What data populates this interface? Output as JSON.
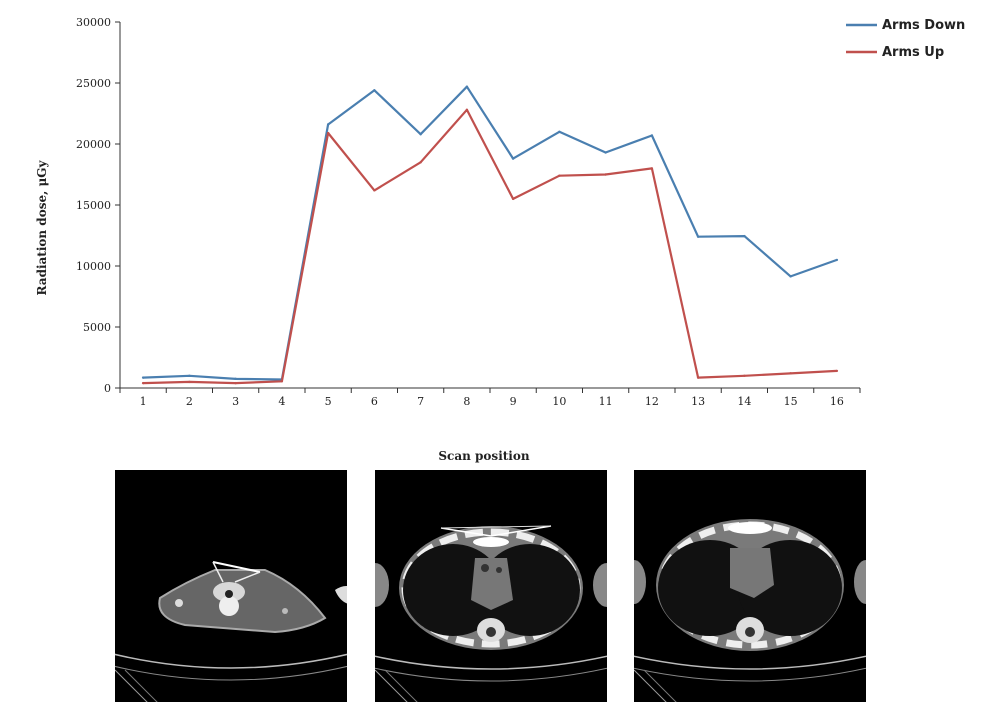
{
  "colors": {
    "arms_down": "#4a7fb0",
    "arms_up": "#c0504d"
  },
  "chart_data": {
    "type": "line",
    "x": [
      1,
      2,
      3,
      4,
      5,
      6,
      7,
      8,
      9,
      10,
      11,
      12,
      13,
      14,
      15,
      16
    ],
    "series": [
      {
        "name": "Arms Down",
        "color": "#4a7fb0",
        "values": [
          850,
          1000,
          750,
          700,
          21600,
          24400,
          20800,
          24700,
          18800,
          21000,
          19300,
          20700,
          12400,
          12450,
          9150,
          10500
        ]
      },
      {
        "name": "Arms Up",
        "color": "#c0504d",
        "values": [
          400,
          500,
          400,
          550,
          20900,
          16200,
          18500,
          22800,
          15500,
          17400,
          17500,
          18000,
          850,
          1000,
          1200,
          1400
        ]
      }
    ],
    "xlabel": "Scan position",
    "ylabel": "Radiation dose, μGy",
    "yticks": [
      0,
      5000,
      10000,
      15000,
      20000,
      25000,
      30000
    ],
    "ylim": [
      0,
      30000
    ],
    "grid": false,
    "legend_position": "top-right"
  },
  "images": [
    {
      "icon": "ct-scan-neck-slice"
    },
    {
      "icon": "ct-scan-upper-chest-slice"
    },
    {
      "icon": "ct-scan-chest-slice"
    }
  ]
}
